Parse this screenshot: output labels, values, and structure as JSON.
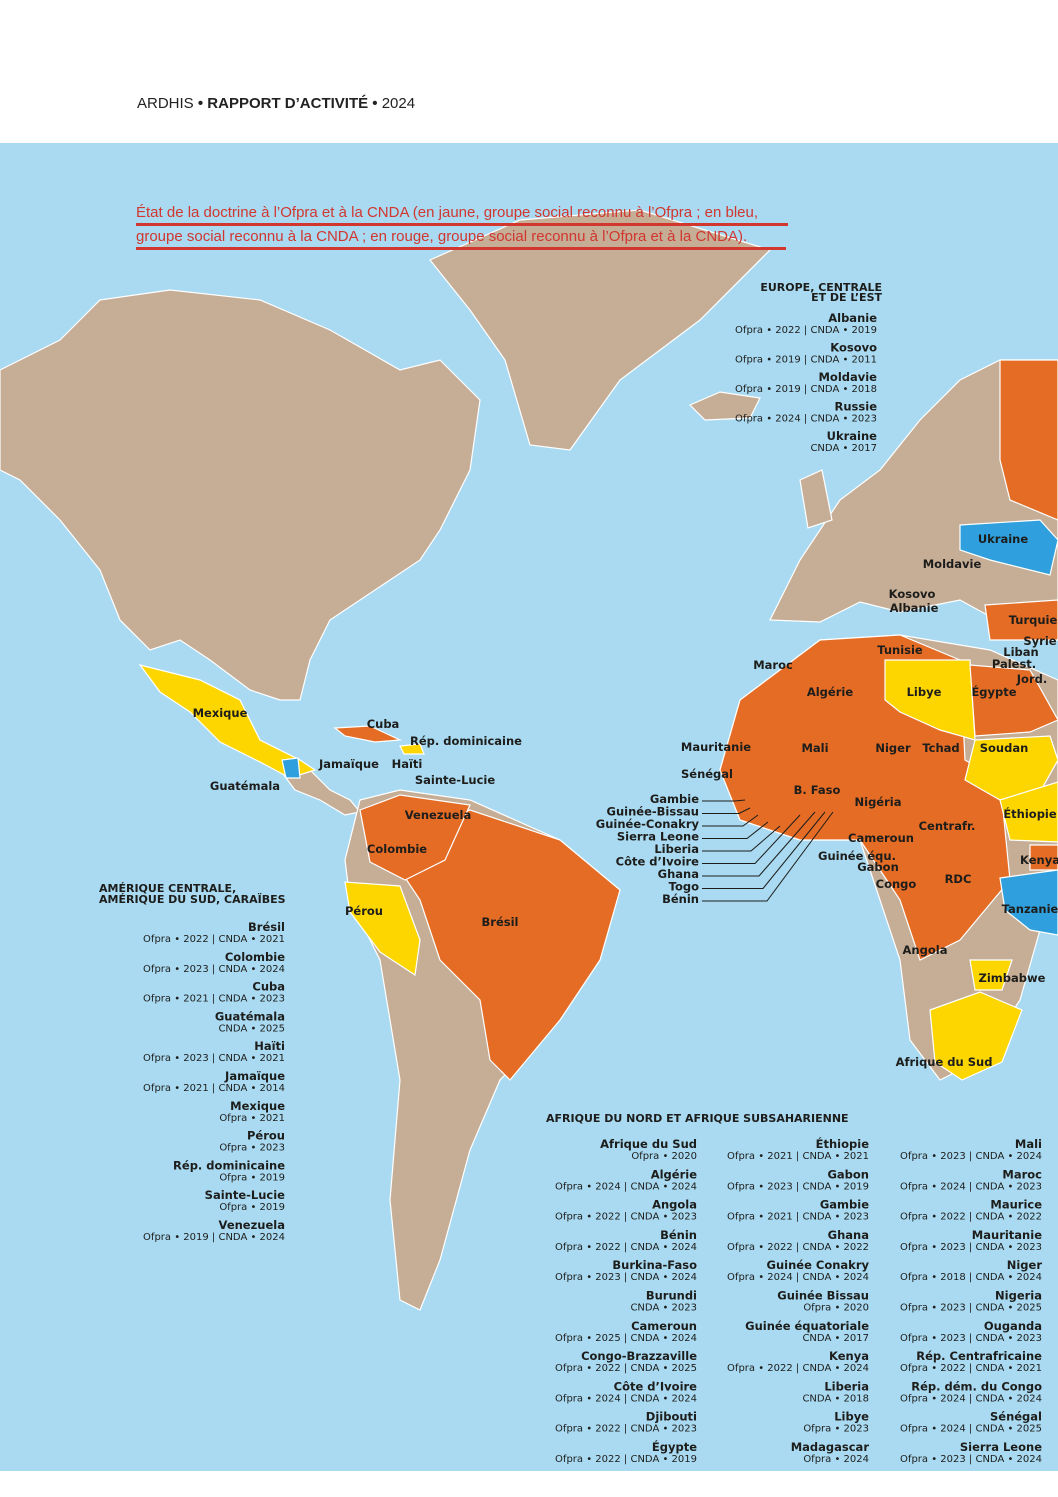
{
  "header": {
    "org": "ARDHIS",
    "separator": "•",
    "title": "RAPPORT D’ACTIVITÉ",
    "year": "2024"
  },
  "caption": {
    "lines": [
      "État de la doctrine à l’Ofpra et à la CNDA (en jaune, groupe social reconnu à l’Ofpra ; en bleu,",
      "groupe social reconnu à la CNDA ; en rouge, groupe social reconnu à l’Ofpra et à la CNDA)."
    ]
  },
  "map": {
    "labels": [
      "Ukraine",
      "Moldavie",
      "Kosovo",
      "Albanie",
      "Turquie",
      "Syrie",
      "Liban",
      "Palest.",
      "Jord.",
      "Tunisie",
      "Maroc",
      "Algérie",
      "Libye",
      "Égypte",
      "Mauritanie",
      "Mali",
      "Niger",
      "Tchad",
      "Soudan",
      "Sénégal",
      "B. Faso",
      "Nigéria",
      "Éthiopie",
      "Centrafr.",
      "Cameroun",
      "Guinée équ.",
      "Gabon",
      "Kenya",
      "RDC",
      "Congo",
      "Tanzanie",
      "Angola",
      "Zimbabwe",
      "Afrique du Sud",
      "Mexique",
      "Cuba",
      "Rép. dominicaine",
      "Jamaïque",
      "Haïti",
      "Guatémala",
      "Sainte-Lucie",
      "Venezuela",
      "Colombie",
      "Pérou",
      "Brésil"
    ],
    "west_africa_labels": [
      "Gambie",
      "Guinée-Bissau",
      "Guinée-Conakry",
      "Sierra Leone",
      "Liberia",
      "Côte d’Ivoire",
      "Ghana",
      "Togo",
      "Bénin"
    ]
  },
  "europe": {
    "title": [
      "EUROPE, CENTRALE",
      "ET DE L’EST"
    ],
    "entries": [
      {
        "name": "Albanie",
        "detail": "Ofpra • 2022 | CNDA • 2019"
      },
      {
        "name": "Kosovo",
        "detail": "Ofpra • 2019 | CNDA • 2011"
      },
      {
        "name": "Moldavie",
        "detail": "Ofpra • 2019 | CNDA • 2018"
      },
      {
        "name": "Russie",
        "detail": "Ofpra • 2024 | CNDA • 2023"
      },
      {
        "name": "Ukraine",
        "detail": "CNDA • 2017"
      }
    ]
  },
  "americas": {
    "title": [
      "AMÉRIQUE CENTRALE,",
      "AMÉRIQUE DU SUD, CARAÏBES"
    ],
    "entries": [
      {
        "name": "Brésil",
        "detail": "Ofpra • 2022 | CNDA • 2021"
      },
      {
        "name": "Colombie",
        "detail": "Ofpra • 2023 | CNDA • 2024"
      },
      {
        "name": "Cuba",
        "detail": "Ofpra • 2021 | CNDA • 2023"
      },
      {
        "name": "Guatémala",
        "detail": "CNDA • 2025"
      },
      {
        "name": "Haïti",
        "detail": "Ofpra • 2023 | CNDA • 2021"
      },
      {
        "name": "Jamaïque",
        "detail": "Ofpra • 2021 | CNDA • 2014"
      },
      {
        "name": "Mexique",
        "detail": "Ofpra • 2021"
      },
      {
        "name": "Pérou",
        "detail": "Ofpra • 2023"
      },
      {
        "name": "Rép. dominicaine",
        "detail": "Ofpra • 2019"
      },
      {
        "name": "Sainte-Lucie",
        "detail": "Ofpra • 2019"
      },
      {
        "name": "Venezuela",
        "detail": "Ofpra • 2019 | CNDA • 2024"
      }
    ]
  },
  "africa": {
    "title": "AFRIQUE DU NORD ET AFRIQUE SUBSAHARIENNE",
    "columns": [
      [
        {
          "name": "Afrique du Sud",
          "detail": "Ofpra • 2020"
        },
        {
          "name": "Algérie",
          "detail": "Ofpra • 2024 | CNDA • 2024"
        },
        {
          "name": "Angola",
          "detail": "Ofpra • 2022 | CNDA • 2023"
        },
        {
          "name": "Bénin",
          "detail": "Ofpra • 2022 | CNDA • 2024"
        },
        {
          "name": "Burkina-Faso",
          "detail": "Ofpra • 2023 | CNDA • 2024"
        },
        {
          "name": "Burundi",
          "detail": "CNDA • 2023"
        },
        {
          "name": "Cameroun",
          "detail": "Ofpra • 2025 | CNDA • 2024"
        },
        {
          "name": "Congo-Brazzaville",
          "detail": "Ofpra • 2022 | CNDA • 2025"
        },
        {
          "name": "Côte d’Ivoire",
          "detail": "Ofpra • 2024 | CNDA • 2024"
        },
        {
          "name": "Djibouti",
          "detail": "Ofpra • 2022 | CNDA • 2023"
        },
        {
          "name": "Égypte",
          "detail": "Ofpra • 2022 | CNDA • 2019"
        }
      ],
      [
        {
          "name": "Éthiopie",
          "detail": "Ofpra • 2021 | CNDA • 2021"
        },
        {
          "name": "Gabon",
          "detail": "Ofpra • 2023 | CNDA • 2019"
        },
        {
          "name": "Gambie",
          "detail": "Ofpra • 2021 | CNDA • 2023"
        },
        {
          "name": "Ghana",
          "detail": "Ofpra • 2022 | CNDA • 2022"
        },
        {
          "name": "Guinée Conakry",
          "detail": "Ofpra • 2024 | CNDA • 2024"
        },
        {
          "name": "Guinée Bissau",
          "detail": "Ofpra • 2020"
        },
        {
          "name": "Guinée équatoriale",
          "detail": "CNDA • 2017"
        },
        {
          "name": "Kenya",
          "detail": "Ofpra • 2022 | CNDA • 2024"
        },
        {
          "name": "Liberia",
          "detail": "CNDA • 2018"
        },
        {
          "name": "Libye",
          "detail": "Ofpra • 2023"
        },
        {
          "name": "Madagascar",
          "detail": "Ofpra • 2024"
        }
      ],
      [
        {
          "name": "Mali",
          "detail": "Ofpra • 2023 | CNDA • 2024"
        },
        {
          "name": "Maroc",
          "detail": "Ofpra • 2024 | CNDA • 2023"
        },
        {
          "name": "Maurice",
          "detail": "Ofpra • 2022 | CNDA • 2022"
        },
        {
          "name": "Mauritanie",
          "detail": "Ofpra • 2023 | CNDA • 2023"
        },
        {
          "name": "Niger",
          "detail": "Ofpra • 2018 | CNDA • 2024"
        },
        {
          "name": "Nigeria",
          "detail": "Ofpra • 2023 | CNDA • 2025"
        },
        {
          "name": "Ouganda",
          "detail": "Ofpra • 2023 | CNDA • 2023"
        },
        {
          "name": "Rép. Centrafricaine",
          "detail": "Ofpra • 2022 | CNDA • 2021"
        },
        {
          "name": "Rép. dém. du Congo",
          "detail": "Ofpra • 2024 | CNDA • 2024"
        },
        {
          "name": "Sénégal",
          "detail": "Ofpra • 2024 | CNDA • 2025"
        },
        {
          "name": "Sierra Leone",
          "detail": "Ofpra • 2023 | CNDA • 2024"
        }
      ]
    ]
  }
}
